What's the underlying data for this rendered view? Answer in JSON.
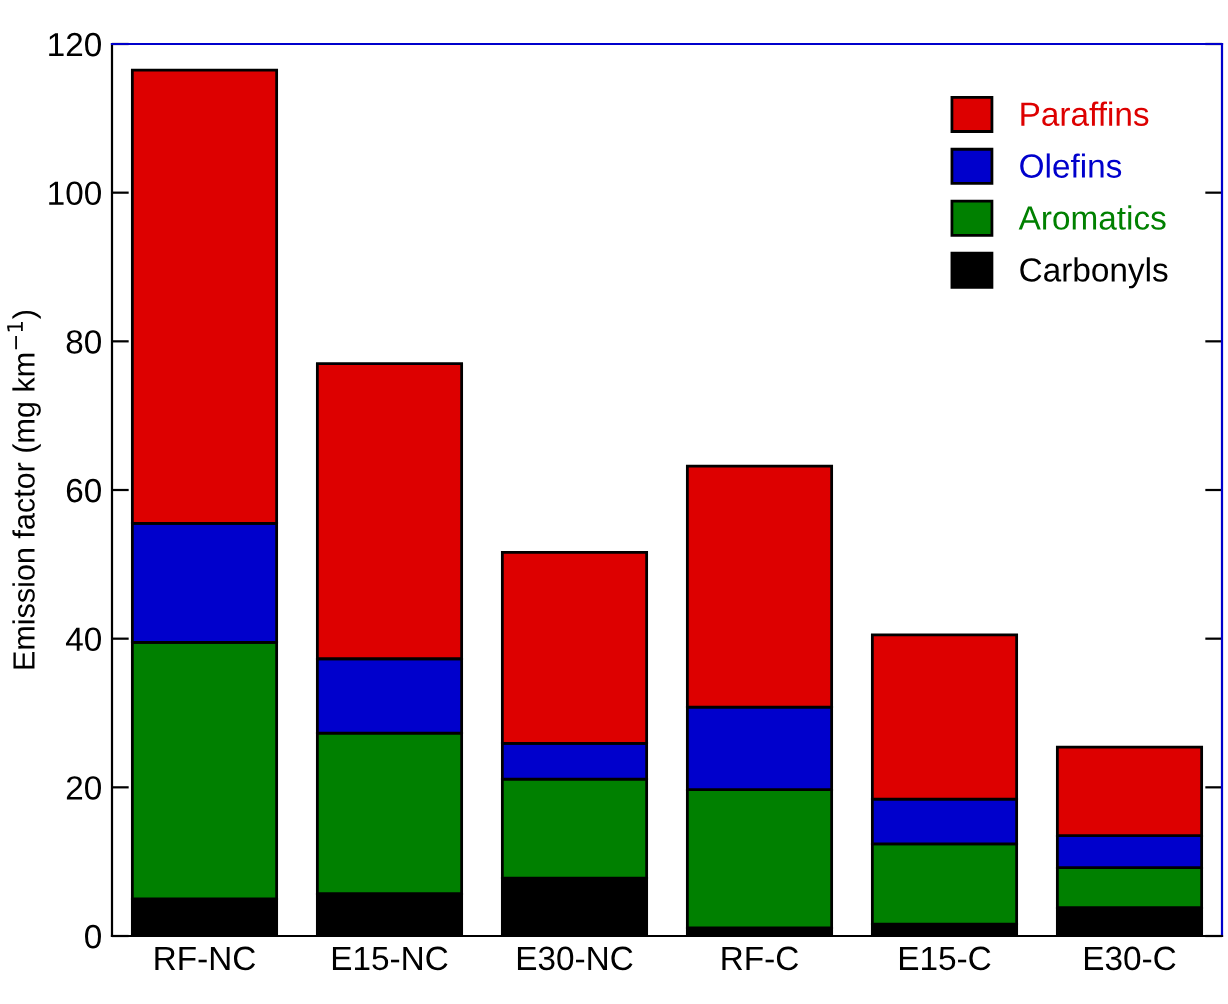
{
  "chart_data": {
    "type": "bar",
    "stacked": true,
    "ylabel": "Emission factor (mg km$^{−1}$)",
    "categories": [
      "RF-NC",
      "E15-NC",
      "E30-NC",
      "RF-C",
      "E15-C",
      "E30-C"
    ],
    "series": [
      {
        "name": "Carbonyls",
        "color": "#000000",
        "values": [
          5,
          5.7,
          7.8,
          1.1,
          1.6,
          3.8
        ]
      },
      {
        "name": "Aromatics",
        "color": "#008000",
        "values": [
          34.5,
          21.6,
          13.3,
          18.6,
          10.8,
          5.4
        ]
      },
      {
        "name": "Olefins",
        "color": "#0000cc",
        "values": [
          16,
          10,
          4.8,
          11.1,
          6,
          4.3
        ]
      },
      {
        "name": "Paraffins",
        "color": "#dd0000",
        "values": [
          61,
          39.7,
          25.7,
          32.4,
          22.1,
          11.9
        ]
      }
    ],
    "ylim": [
      0,
      120
    ],
    "yticks": [
      0,
      20,
      40,
      60,
      80,
      100,
      120
    ],
    "grid": false,
    "legend": "top right"
  }
}
